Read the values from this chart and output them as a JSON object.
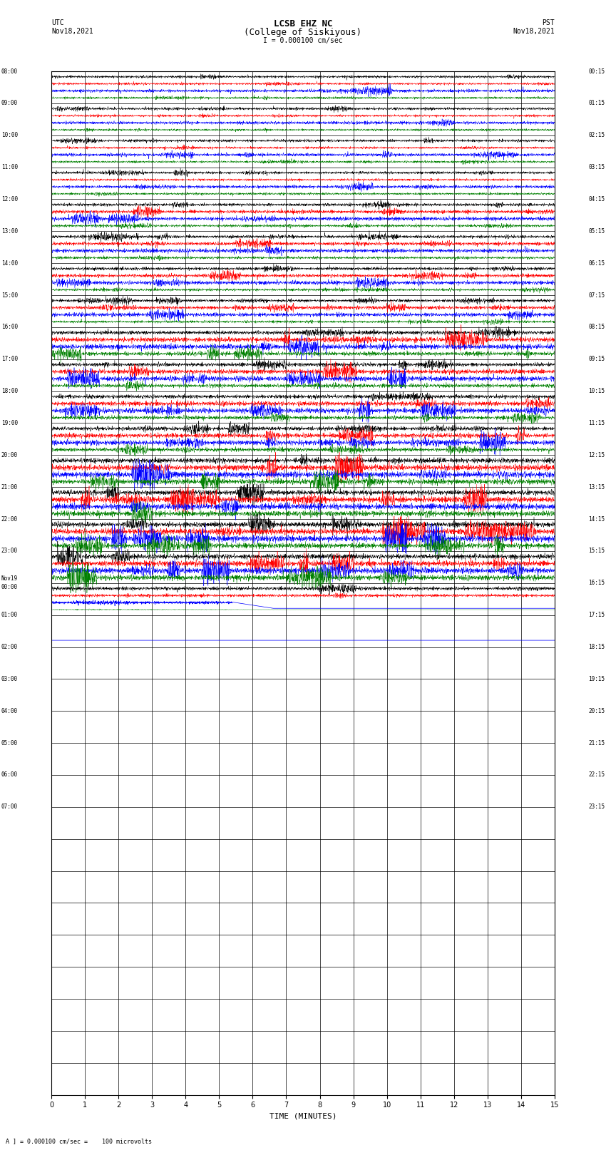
{
  "title_line1": "LCSB EHZ NC",
  "title_line2": "(College of Siskiyous)",
  "title_line3": "I = 0.000100 cm/sec",
  "label_utc": "UTC",
  "label_pst": "PST",
  "date_left": "Nov18,2021",
  "date_right": "Nov18,2021",
  "xlabel": "TIME (MINUTES)",
  "footnote": "A ] = 0.000100 cm/sec =    100 microvolts",
  "bg_color": "#ffffff",
  "grid_color": "#000000",
  "trace_colors": [
    "black",
    "red",
    "blue",
    "green"
  ],
  "num_rows": 32,
  "xlim": [
    0,
    15
  ],
  "xticks": [
    0,
    1,
    2,
    3,
    4,
    5,
    6,
    7,
    8,
    9,
    10,
    11,
    12,
    13,
    14,
    15
  ],
  "left_times_utc": [
    "08:00",
    "09:00",
    "10:00",
    "11:00",
    "12:00",
    "13:00",
    "14:00",
    "15:00",
    "16:00",
    "17:00",
    "18:00",
    "19:00",
    "20:00",
    "21:00",
    "22:00",
    "23:00",
    "Nov19\n00:00",
    "01:00",
    "02:00",
    "03:00",
    "04:00",
    "05:00",
    "06:00",
    "07:00",
    "",
    "",
    "",
    "",
    "",
    "",
    "",
    ""
  ],
  "right_times_pst": [
    "00:15",
    "01:15",
    "02:15",
    "03:15",
    "04:15",
    "05:15",
    "06:15",
    "07:15",
    "08:15",
    "09:15",
    "10:15",
    "11:15",
    "12:15",
    "13:15",
    "14:15",
    "15:15",
    "16:15",
    "17:15",
    "18:15",
    "19:15",
    "20:15",
    "21:15",
    "22:15",
    "23:15",
    "",
    "",
    "",
    "",
    "",
    "",
    "",
    ""
  ],
  "active_rows": 16,
  "transition_row": 16
}
